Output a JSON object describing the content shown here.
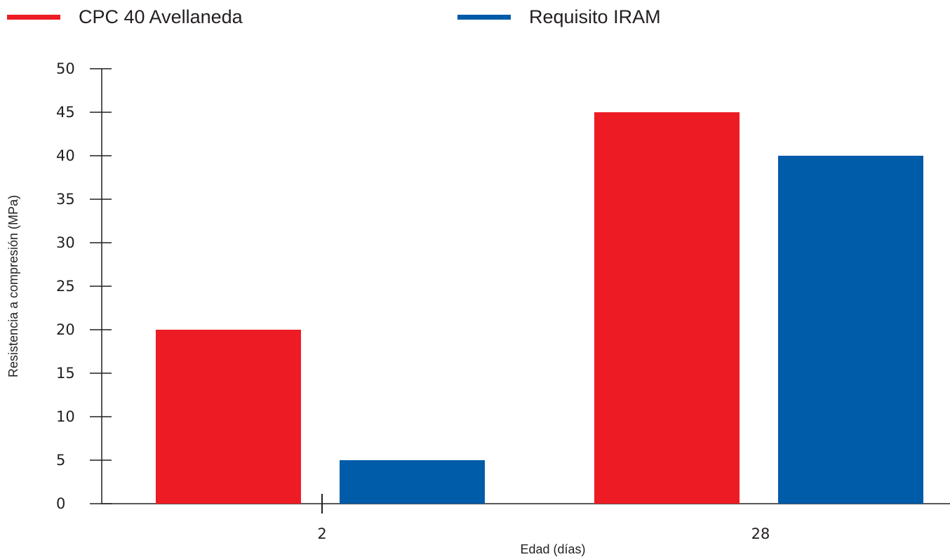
{
  "chart_data": {
    "type": "bar",
    "categories": [
      "2",
      "28"
    ],
    "series": [
      {
        "name": "CPC 40 Avellaneda",
        "color": "#ed1c24",
        "values": [
          20,
          45
        ]
      },
      {
        "name": "Requisito IRAM",
        "color": "#005ba8",
        "values": [
          5,
          40
        ]
      }
    ],
    "xlabel": "Edad (días)",
    "ylabel": "Resistencia a compresión (MPa)",
    "ylim": [
      0,
      50
    ],
    "yticks": [
      0,
      5,
      10,
      15,
      20,
      25,
      30,
      35,
      40,
      45,
      50
    ],
    "grid": false,
    "legend_position": "top"
  }
}
